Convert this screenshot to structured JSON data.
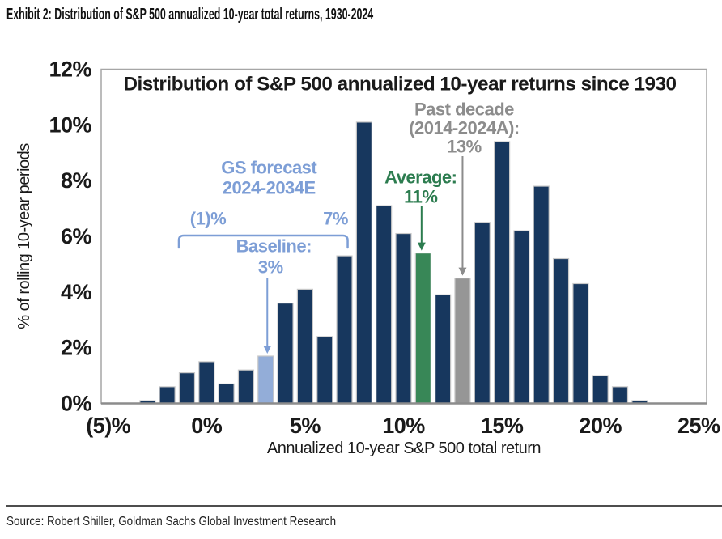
{
  "header": {
    "title": "Exhibit 2: Distribution of S&P 500 annualized 10-year total returns, 1930-2024"
  },
  "footer": {
    "source": "Source: Robert Shiller, Goldman Sachs Global Investment Research"
  },
  "chart_data": {
    "type": "bar",
    "title": "Distribution of S&P 500 annualized 10-year returns since 1930",
    "xlabel": "Annualized 10-year S&P 500 total return",
    "ylabel": "% of rolling 10-year periods",
    "xlim": [
      -5.4,
      25.4
    ],
    "ylim": [
      0,
      12
    ],
    "grid": false,
    "legend": false,
    "x_ticks": [
      -5,
      0,
      5,
      10,
      15,
      20,
      25
    ],
    "x_tick_labels": [
      "(5)%",
      "0%",
      "5%",
      "10%",
      "15%",
      "20%",
      "25%"
    ],
    "y_ticks": [
      0,
      2,
      4,
      6,
      8,
      10,
      12
    ],
    "y_tick_labels": [
      "0%",
      "2%",
      "4%",
      "6%",
      "8%",
      "10%",
      "12%"
    ],
    "bars": [
      {
        "x": -3,
        "value": 0.1,
        "color": "default"
      },
      {
        "x": -2,
        "value": 0.6,
        "color": "default"
      },
      {
        "x": -1,
        "value": 1.1,
        "color": "default"
      },
      {
        "x": 0,
        "value": 1.5,
        "color": "default"
      },
      {
        "x": 1,
        "value": 0.7,
        "color": "default"
      },
      {
        "x": 2,
        "value": 1.2,
        "color": "default"
      },
      {
        "x": 3,
        "value": 1.7,
        "color": "forecast"
      },
      {
        "x": 4,
        "value": 3.6,
        "color": "default"
      },
      {
        "x": 5,
        "value": 4.1,
        "color": "default"
      },
      {
        "x": 6,
        "value": 2.4,
        "color": "default"
      },
      {
        "x": 7,
        "value": 5.3,
        "color": "default"
      },
      {
        "x": 8,
        "value": 10.1,
        "color": "default"
      },
      {
        "x": 9,
        "value": 7.1,
        "color": "default"
      },
      {
        "x": 10,
        "value": 6.1,
        "color": "default"
      },
      {
        "x": 11,
        "value": 5.4,
        "color": "average"
      },
      {
        "x": 12,
        "value": 3.9,
        "color": "default"
      },
      {
        "x": 13,
        "value": 4.5,
        "color": "past_decade"
      },
      {
        "x": 14,
        "value": 6.5,
        "color": "default"
      },
      {
        "x": 15,
        "value": 9.4,
        "color": "default"
      },
      {
        "x": 16,
        "value": 6.2,
        "color": "default"
      },
      {
        "x": 17,
        "value": 7.8,
        "color": "default"
      },
      {
        "x": 18,
        "value": 5.2,
        "color": "default"
      },
      {
        "x": 19,
        "value": 4.3,
        "color": "default"
      },
      {
        "x": 20,
        "value": 1.0,
        "color": "default"
      },
      {
        "x": 21,
        "value": 0.6,
        "color": "default"
      },
      {
        "x": 22,
        "value": 0.1,
        "color": "default"
      }
    ],
    "colors": {
      "default": "#17375e",
      "forecast": "#93add8",
      "average": "#388757",
      "past_decade": "#969696",
      "forecast_text": "#7d9ed6",
      "average_text": "#2c7c4f",
      "past_decade_text": "#8c8c8c",
      "axis": "#8c8c8c",
      "frame": "#a6a6a6",
      "bar_outline": "#c9c9c9",
      "tick_text": "#1a1a1a"
    },
    "annotations": {
      "gs_forecast": {
        "line1": "GS forecast",
        "line2": "2024-2034E",
        "range_low": -1,
        "range_high": 7,
        "range_low_label": "(1)%",
        "range_high_label": "7%",
        "baseline_label": "Baseline:",
        "baseline_value_label": "3%",
        "baseline_x": 3
      },
      "average": {
        "line1": "Average:",
        "line2": "11%",
        "x": 11
      },
      "past_decade": {
        "line1": "Past decade",
        "line2": "(2014-2024A):",
        "line3": "13%",
        "x": 13
      }
    }
  }
}
